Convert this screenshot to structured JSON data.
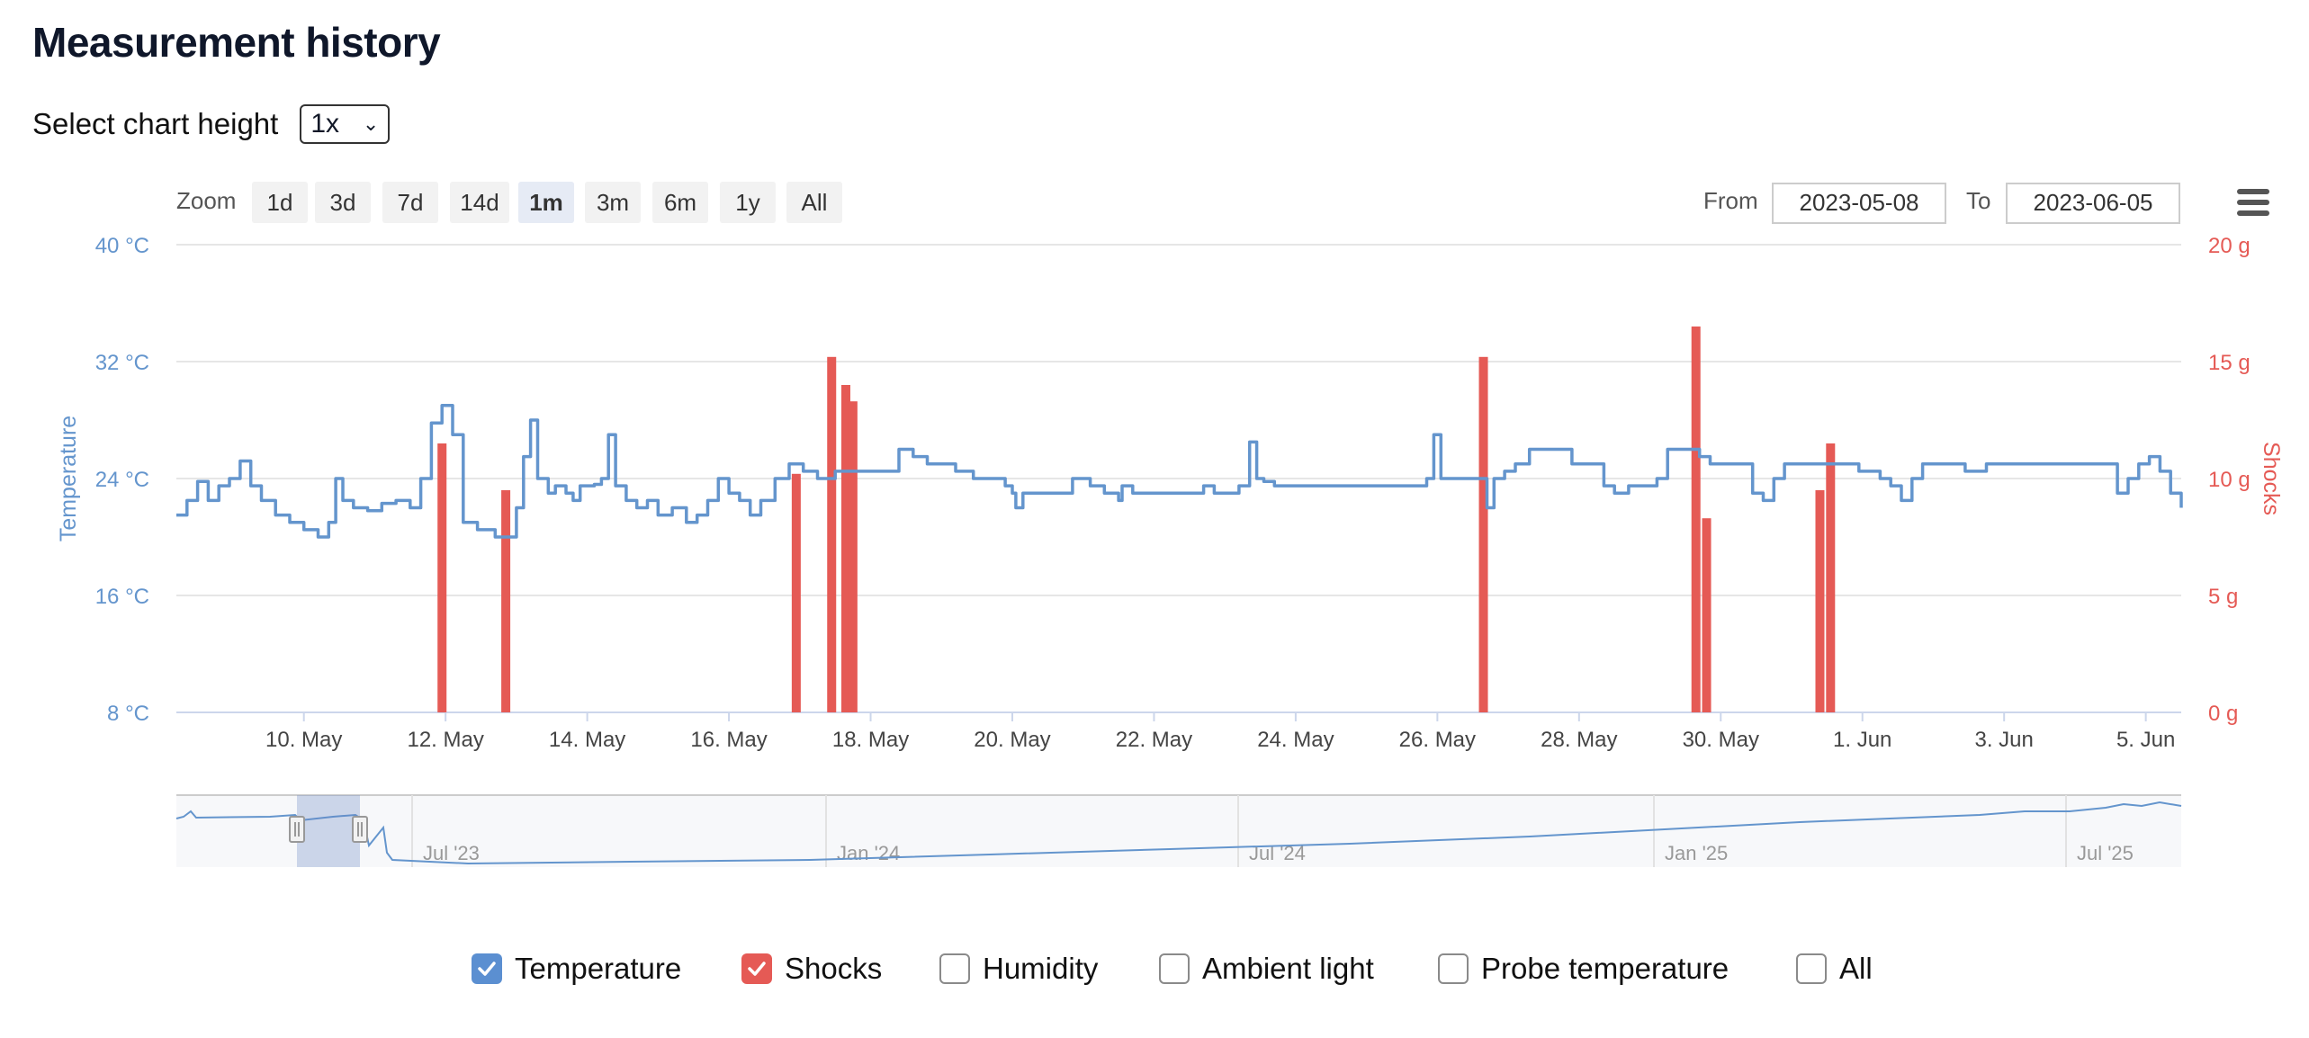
{
  "page": {
    "title": "Measurement history"
  },
  "chart_height": {
    "label": "Select chart height",
    "value": "1x"
  },
  "zoom": {
    "label": "Zoom",
    "buttons": [
      "1d",
      "3d",
      "7d",
      "14d",
      "1m",
      "3m",
      "6m",
      "1y",
      "All"
    ],
    "active": "1m"
  },
  "range": {
    "from_label": "From",
    "from": "2023-05-08",
    "to_label": "To",
    "to": "2023-06-05"
  },
  "legend": [
    {
      "label": "Temperature",
      "checked": true,
      "color": "#5b8fd1"
    },
    {
      "label": "Shocks",
      "checked": true,
      "color": "#e55a55"
    },
    {
      "label": "Humidity",
      "checked": false
    },
    {
      "label": "Ambient light",
      "checked": false
    },
    {
      "label": "Probe temperature",
      "checked": false
    },
    {
      "label": "All",
      "checked": false
    }
  ],
  "colors": {
    "temperature": "#6495cd",
    "shocks": "#e55a55",
    "grid": "#e6e6e6",
    "axis_text": "#444444"
  },
  "chart_data": {
    "type": "line",
    "title": "",
    "xlabel": "",
    "x_range_days": [
      8.2,
      36.5
    ],
    "x_ticks": [
      {
        "day": 10,
        "label": "10. May"
      },
      {
        "day": 12,
        "label": "12. May"
      },
      {
        "day": 14,
        "label": "14. May"
      },
      {
        "day": 16,
        "label": "16. May"
      },
      {
        "day": 18,
        "label": "18. May"
      },
      {
        "day": 20,
        "label": "20. May"
      },
      {
        "day": 22,
        "label": "22. May"
      },
      {
        "day": 24,
        "label": "24. May"
      },
      {
        "day": 26,
        "label": "26. May"
      },
      {
        "day": 28,
        "label": "28. May"
      },
      {
        "day": 30,
        "label": "30. May"
      },
      {
        "day": 32,
        "label": "1. Jun"
      },
      {
        "day": 34,
        "label": "3. Jun"
      },
      {
        "day": 36,
        "label": "5. Jun"
      }
    ],
    "y_left": {
      "label": "Temperature",
      "ticks": [
        "8 °C",
        "16 °C",
        "24 °C",
        "32 °C",
        "40 °C"
      ],
      "range": [
        8,
        40
      ]
    },
    "y_right": {
      "label": "Shocks",
      "ticks": [
        "0 g",
        "5 g",
        "10 g",
        "15 g",
        "20 g"
      ],
      "range": [
        0,
        20
      ]
    },
    "series": [
      {
        "name": "Temperature",
        "axis": "left",
        "type": "line",
        "points": [
          [
            8.2,
            21.5
          ],
          [
            8.35,
            22.5
          ],
          [
            8.5,
            23.8
          ],
          [
            8.65,
            22.5
          ],
          [
            8.8,
            23.5
          ],
          [
            8.95,
            24
          ],
          [
            9.1,
            25.2
          ],
          [
            9.25,
            23.5
          ],
          [
            9.4,
            22.5
          ],
          [
            9.6,
            21.5
          ],
          [
            9.8,
            21
          ],
          [
            10.0,
            20.5
          ],
          [
            10.2,
            20
          ],
          [
            10.35,
            21
          ],
          [
            10.45,
            24
          ],
          [
            10.55,
            22.5
          ],
          [
            10.7,
            22
          ],
          [
            10.9,
            21.8
          ],
          [
            11.1,
            22.3
          ],
          [
            11.3,
            22.5
          ],
          [
            11.5,
            22
          ],
          [
            11.65,
            24
          ],
          [
            11.8,
            27.8
          ],
          [
            11.95,
            29
          ],
          [
            12.1,
            27
          ],
          [
            12.25,
            21
          ],
          [
            12.45,
            20.5
          ],
          [
            12.7,
            20
          ],
          [
            12.9,
            20
          ],
          [
            13.0,
            22
          ],
          [
            13.1,
            25.5
          ],
          [
            13.2,
            28
          ],
          [
            13.3,
            24
          ],
          [
            13.45,
            23
          ],
          [
            13.55,
            23.5
          ],
          [
            13.7,
            23
          ],
          [
            13.8,
            22.5
          ],
          [
            13.9,
            23.5
          ],
          [
            14.0,
            23.5
          ],
          [
            14.1,
            23.6
          ],
          [
            14.2,
            24
          ],
          [
            14.3,
            27
          ],
          [
            14.4,
            23.5
          ],
          [
            14.55,
            22.5
          ],
          [
            14.7,
            22
          ],
          [
            14.85,
            22.5
          ],
          [
            15.0,
            21.5
          ],
          [
            15.2,
            22
          ],
          [
            15.4,
            21
          ],
          [
            15.55,
            21.5
          ],
          [
            15.7,
            22.5
          ],
          [
            15.85,
            24
          ],
          [
            16.0,
            23
          ],
          [
            16.15,
            22.5
          ],
          [
            16.3,
            21.5
          ],
          [
            16.45,
            22.5
          ],
          [
            16.65,
            24
          ],
          [
            16.85,
            25
          ],
          [
            17.05,
            24.5
          ],
          [
            17.25,
            24
          ],
          [
            17.5,
            24.5
          ],
          [
            17.75,
            24.5
          ],
          [
            18.0,
            24.5
          ],
          [
            18.2,
            24.5
          ],
          [
            18.4,
            26
          ],
          [
            18.6,
            25.5
          ],
          [
            18.8,
            25
          ],
          [
            19.0,
            25
          ],
          [
            19.2,
            24.5
          ],
          [
            19.45,
            24
          ],
          [
            19.65,
            24
          ],
          [
            19.8,
            24
          ],
          [
            19.9,
            23.5
          ],
          [
            20.0,
            23
          ],
          [
            20.05,
            22
          ],
          [
            20.15,
            23
          ],
          [
            20.3,
            23
          ],
          [
            20.5,
            23
          ],
          [
            20.7,
            23
          ],
          [
            20.85,
            24
          ],
          [
            20.95,
            24
          ],
          [
            21.1,
            23.5
          ],
          [
            21.3,
            23
          ],
          [
            21.5,
            22.5
          ],
          [
            21.55,
            23.5
          ],
          [
            21.7,
            23
          ],
          [
            21.9,
            23
          ],
          [
            22.1,
            23
          ],
          [
            22.3,
            23
          ],
          [
            22.5,
            23
          ],
          [
            22.7,
            23.5
          ],
          [
            22.85,
            23
          ],
          [
            23.0,
            23
          ],
          [
            23.2,
            23.5
          ],
          [
            23.35,
            26.5
          ],
          [
            23.45,
            24
          ],
          [
            23.55,
            23.8
          ],
          [
            23.7,
            23.5
          ],
          [
            23.9,
            23.5
          ],
          [
            24.1,
            23.5
          ],
          [
            24.3,
            23.5
          ],
          [
            24.5,
            23.5
          ],
          [
            24.7,
            23.5
          ],
          [
            24.9,
            23.5
          ],
          [
            25.1,
            23.5
          ],
          [
            25.3,
            23.5
          ],
          [
            25.5,
            23.5
          ],
          [
            25.7,
            23.5
          ],
          [
            25.85,
            24
          ],
          [
            25.95,
            27
          ],
          [
            26.05,
            24
          ],
          [
            26.25,
            24
          ],
          [
            26.45,
            24
          ],
          [
            26.6,
            24
          ],
          [
            26.7,
            22
          ],
          [
            26.8,
            24
          ],
          [
            26.95,
            24.5
          ],
          [
            27.1,
            25
          ],
          [
            27.3,
            26
          ],
          [
            27.5,
            26
          ],
          [
            27.7,
            26
          ],
          [
            27.9,
            25
          ],
          [
            28.1,
            25
          ],
          [
            28.25,
            25
          ],
          [
            28.35,
            23.5
          ],
          [
            28.5,
            23
          ],
          [
            28.7,
            23.5
          ],
          [
            28.9,
            23.5
          ],
          [
            29.1,
            24
          ],
          [
            29.25,
            26
          ],
          [
            29.4,
            26
          ],
          [
            29.55,
            26
          ],
          [
            29.7,
            25.5
          ],
          [
            29.85,
            25
          ],
          [
            30.0,
            25
          ],
          [
            30.15,
            25
          ],
          [
            30.3,
            25
          ],
          [
            30.45,
            23
          ],
          [
            30.6,
            22.5
          ],
          [
            30.75,
            24
          ],
          [
            30.9,
            25
          ],
          [
            31.05,
            25
          ],
          [
            31.2,
            25
          ],
          [
            31.35,
            25
          ],
          [
            31.5,
            25
          ],
          [
            31.65,
            25
          ],
          [
            31.8,
            25
          ],
          [
            31.95,
            24.5
          ],
          [
            32.1,
            24.5
          ],
          [
            32.25,
            24
          ],
          [
            32.4,
            23.5
          ],
          [
            32.55,
            22.5
          ],
          [
            32.7,
            24
          ],
          [
            32.85,
            25
          ],
          [
            33.0,
            25
          ],
          [
            33.15,
            25
          ],
          [
            33.3,
            25
          ],
          [
            33.45,
            24.5
          ],
          [
            33.6,
            24.5
          ],
          [
            33.75,
            25
          ],
          [
            33.9,
            25
          ],
          [
            34.05,
            25
          ],
          [
            34.2,
            25
          ],
          [
            34.35,
            25
          ],
          [
            34.5,
            25
          ],
          [
            34.65,
            25
          ],
          [
            34.8,
            25
          ],
          [
            34.95,
            25
          ],
          [
            35.1,
            25
          ],
          [
            35.25,
            25
          ],
          [
            35.4,
            25
          ],
          [
            35.6,
            23
          ],
          [
            35.75,
            24
          ],
          [
            35.9,
            25
          ],
          [
            36.05,
            25.5
          ],
          [
            36.2,
            24.5
          ],
          [
            36.35,
            23
          ],
          [
            36.5,
            22
          ]
        ]
      },
      {
        "name": "Shocks",
        "axis": "right",
        "type": "column",
        "points": [
          [
            11.95,
            11.5
          ],
          [
            12.85,
            9.5
          ],
          [
            16.95,
            10.2
          ],
          [
            17.45,
            15.2
          ],
          [
            17.65,
            14
          ],
          [
            17.75,
            13.3
          ],
          [
            26.65,
            15.2
          ],
          [
            29.65,
            16.5
          ],
          [
            29.8,
            8.3
          ],
          [
            31.4,
            9.5
          ],
          [
            31.55,
            11.5
          ]
        ]
      }
    ]
  },
  "navigator": {
    "labels": [
      "Jul '23",
      "Jan '24",
      "Jul '24",
      "Jan '25",
      "Jul '25"
    ]
  }
}
